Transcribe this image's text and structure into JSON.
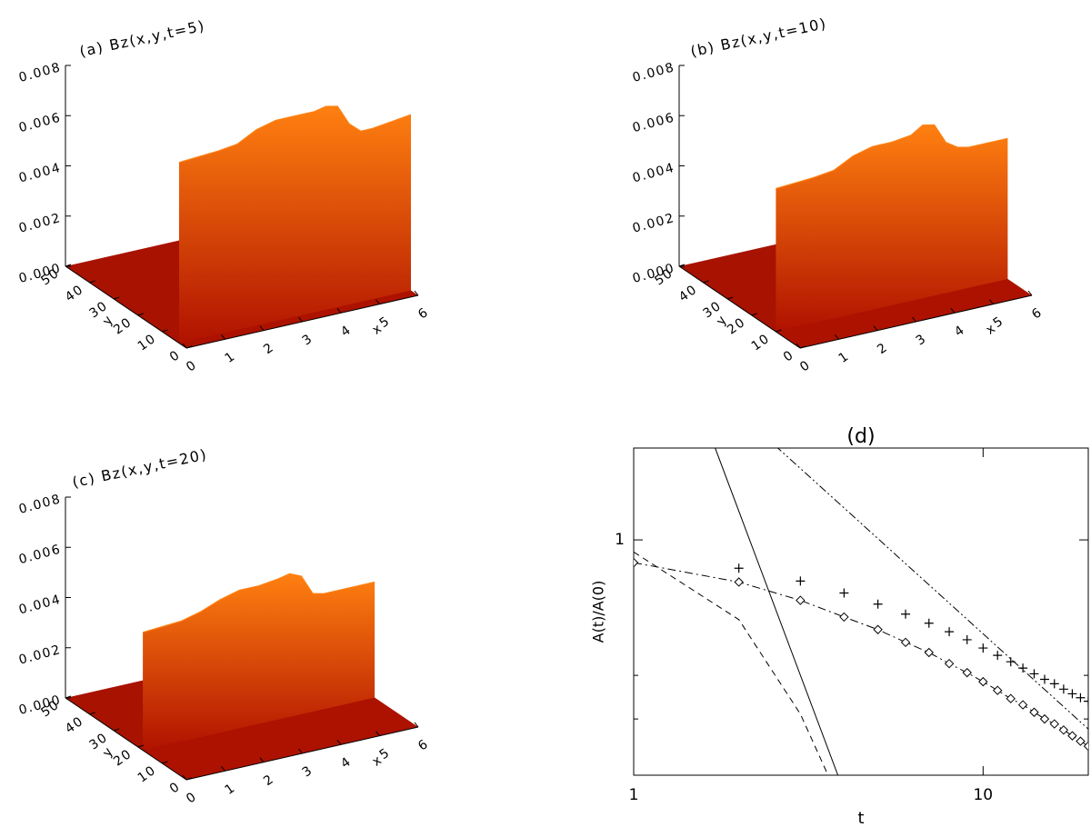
{
  "chart_data": [
    {
      "type": "surface",
      "title": "(a) Bz(x,y,t=5)",
      "xlabel": "x",
      "ylabel": "y",
      "xlim": [
        0,
        6
      ],
      "ylim": [
        0,
        50
      ],
      "zlim": [
        0,
        0.008
      ],
      "xticks": [
        0,
        1,
        2,
        3,
        4,
        5,
        6
      ],
      "yticks": [
        0,
        10,
        20,
        30,
        40,
        50
      ],
      "zticks": [
        {
          "value": 0,
          "label": "0.000"
        },
        {
          "value": 0.002,
          "label": "0.002"
        },
        {
          "value": 0.004,
          "label": "0.004"
        },
        {
          "value": 0.006,
          "label": "0.006"
        },
        {
          "value": 0.008,
          "label": "0.008"
        }
      ],
      "colors": [
        "#ff8010",
        "#b01200"
      ],
      "floor_color": "#a81200",
      "ridge_y": 3,
      "x": [
        0,
        1,
        1.5,
        2,
        2.5,
        3,
        3.5,
        3.8,
        4.1,
        4.4,
        4.7,
        5,
        6
      ],
      "values": [
        0.0072,
        0.0073,
        0.0074,
        0.0078,
        0.008,
        0.008,
        0.008,
        0.0081,
        0.008,
        0.0072,
        0.0068,
        0.0068,
        0.007
      ]
    },
    {
      "type": "surface",
      "title": "(b) Bz(x,y,t=10)",
      "xlabel": "x",
      "ylabel": "y",
      "xlim": [
        0,
        6
      ],
      "ylim": [
        0,
        50
      ],
      "zlim": [
        0,
        0.008
      ],
      "xticks": [
        0,
        1,
        2,
        3,
        4,
        5,
        6
      ],
      "yticks": [
        0,
        10,
        20,
        30,
        40,
        50
      ],
      "zticks": [
        {
          "value": 0,
          "label": "0.000"
        },
        {
          "value": 0.002,
          "label": "0.002"
        },
        {
          "value": 0.004,
          "label": "0.004"
        },
        {
          "value": 0.006,
          "label": "0.006"
        },
        {
          "value": 0.008,
          "label": "0.008"
        }
      ],
      "colors": [
        "#ff8010",
        "#b01200"
      ],
      "floor_color": "#a81200",
      "ridge_y": 10,
      "x": [
        0,
        1,
        1.5,
        2,
        2.5,
        3,
        3.5,
        3.8,
        4.1,
        4.4,
        4.7,
        5,
        6
      ],
      "values": [
        0.0057,
        0.0058,
        0.0059,
        0.0063,
        0.0065,
        0.0065,
        0.0066,
        0.0069,
        0.0068,
        0.006,
        0.0057,
        0.0056,
        0.0056
      ]
    },
    {
      "type": "surface",
      "title": "(c) Bz(x,y,t=20)",
      "xlabel": "x",
      "ylabel": "y",
      "xlim": [
        0,
        6
      ],
      "ylim": [
        0,
        50
      ],
      "zlim": [
        0,
        0.008
      ],
      "xticks": [
        0,
        1,
        2,
        3,
        4,
        5,
        6
      ],
      "yticks": [
        0,
        10,
        20,
        30,
        40,
        50
      ],
      "zticks": [
        {
          "value": 0,
          "label": "0.000"
        },
        {
          "value": 0.002,
          "label": "0.002"
        },
        {
          "value": 0.004,
          "label": "0.004"
        },
        {
          "value": 0.006,
          "label": "0.006"
        },
        {
          "value": 0.008,
          "label": "0.008"
        }
      ],
      "colors": [
        "#ff8010",
        "#b01200"
      ],
      "floor_color": "#a81200",
      "ridge_y": 18,
      "x": [
        0,
        1,
        1.5,
        2,
        2.5,
        3,
        3.5,
        3.8,
        4.1,
        4.4,
        4.7,
        5,
        6
      ],
      "values": [
        0.0047,
        0.0048,
        0.005,
        0.0053,
        0.0055,
        0.0055,
        0.0056,
        0.0057,
        0.0055,
        0.0047,
        0.0046,
        0.0046,
        0.0046
      ]
    },
    {
      "type": "line",
      "title": "(d)",
      "xlabel": "t",
      "ylabel": "A(t)/A(0)",
      "log_x": true,
      "log_y": true,
      "xlim": [
        1,
        20
      ],
      "ylim": [
        0.3,
        1.6
      ],
      "xticks": [
        1,
        10
      ],
      "yticks": [
        1
      ],
      "yminor_ticks": [
        0.4,
        0.5
      ],
      "color": "#000000",
      "series": [
        {
          "marker": "plus",
          "line": "none",
          "x": [
            2,
            3,
            4,
            5,
            6,
            7,
            8,
            9,
            10,
            11,
            12,
            13,
            14,
            15,
            16,
            17,
            18,
            19,
            20
          ],
          "values": [
            0.865,
            0.81,
            0.762,
            0.72,
            0.684,
            0.653,
            0.625,
            0.6,
            0.575,
            0.554,
            0.536,
            0.519,
            0.504,
            0.49,
            0.479,
            0.466,
            0.455,
            0.446,
            0.438
          ]
        },
        {
          "marker": "diamond",
          "line": "dashdot",
          "x": [
            1,
            2,
            3,
            4,
            5,
            6,
            7,
            8,
            9,
            10,
            11,
            12,
            13,
            14,
            15,
            16,
            17,
            18,
            19,
            20
          ],
          "values": [
            0.89,
            0.806,
            0.734,
            0.674,
            0.632,
            0.592,
            0.562,
            0.531,
            0.507,
            0.484,
            0.463,
            0.444,
            0.43,
            0.414,
            0.4,
            0.39,
            0.378,
            0.367,
            0.357,
            0.348
          ]
        },
        {
          "marker": "none",
          "line": "dashed",
          "x": [
            1,
            2,
            3,
            3.6
          ],
          "values": [
            0.94,
            0.665,
            0.41,
            0.3
          ]
        },
        {
          "marker": "none",
          "line": "solid",
          "x": [
            1.7,
            3.84
          ],
          "values": [
            1.62,
            0.3
          ]
        },
        {
          "marker": "none",
          "line": "dashdotdot",
          "x": [
            2.54,
            20
          ],
          "values": [
            1.62,
            0.38
          ]
        }
      ]
    }
  ]
}
